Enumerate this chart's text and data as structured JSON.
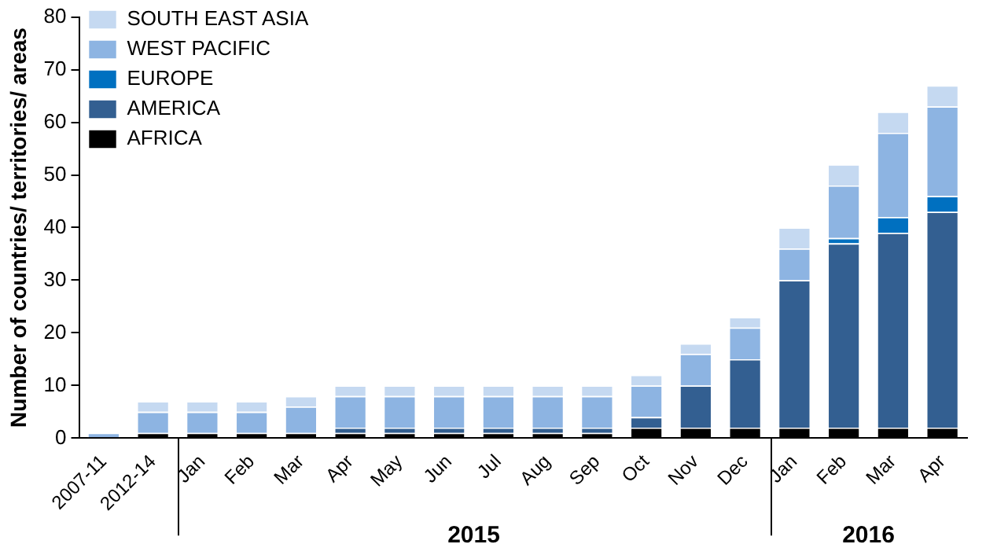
{
  "chart_data": {
    "type": "bar",
    "stacked": true,
    "ylabel": "Number of countries/ territories/ areas",
    "categories": [
      "2007-11",
      "2012-14",
      "Jan",
      "Feb",
      "Mar",
      "Apr",
      "May",
      "Jun",
      "Jul",
      "Aug",
      "Sep",
      "Oct",
      "Nov",
      "Dec",
      "Jan",
      "Feb",
      "Mar",
      "Apr"
    ],
    "series": [
      {
        "name": "AFRICA",
        "color": "#000000",
        "values": [
          0,
          1,
          1,
          1,
          1,
          1,
          1,
          1,
          1,
          1,
          1,
          2,
          2,
          2,
          2,
          2,
          2,
          2
        ]
      },
      {
        "name": "AMERICA",
        "color": "#335f91",
        "values": [
          0,
          0,
          0,
          0,
          0,
          1,
          1,
          1,
          1,
          1,
          1,
          2,
          8,
          13,
          28,
          35,
          37,
          41
        ]
      },
      {
        "name": "EUROPE",
        "color": "#0070c0",
        "values": [
          0,
          0,
          0,
          0,
          0,
          0,
          0,
          0,
          0,
          0,
          0,
          0,
          0,
          0,
          0,
          1,
          3,
          3
        ]
      },
      {
        "name": "WEST PACIFIC",
        "color": "#8db4e2",
        "values": [
          1,
          4,
          4,
          4,
          5,
          6,
          6,
          6,
          6,
          6,
          6,
          6,
          6,
          6,
          6,
          10,
          16,
          17
        ]
      },
      {
        "name": "SOUTH EAST ASIA",
        "color": "#c5d9f1",
        "values": [
          0,
          2,
          2,
          2,
          2,
          2,
          2,
          2,
          2,
          2,
          2,
          2,
          2,
          2,
          4,
          4,
          4,
          4
        ]
      }
    ],
    "ylim": [
      0,
      80
    ],
    "yticks": [
      0,
      10,
      20,
      30,
      40,
      50,
      60,
      70,
      80
    ],
    "grid": false,
    "legend": "top left",
    "annotations": [
      "2015",
      "2016"
    ]
  }
}
